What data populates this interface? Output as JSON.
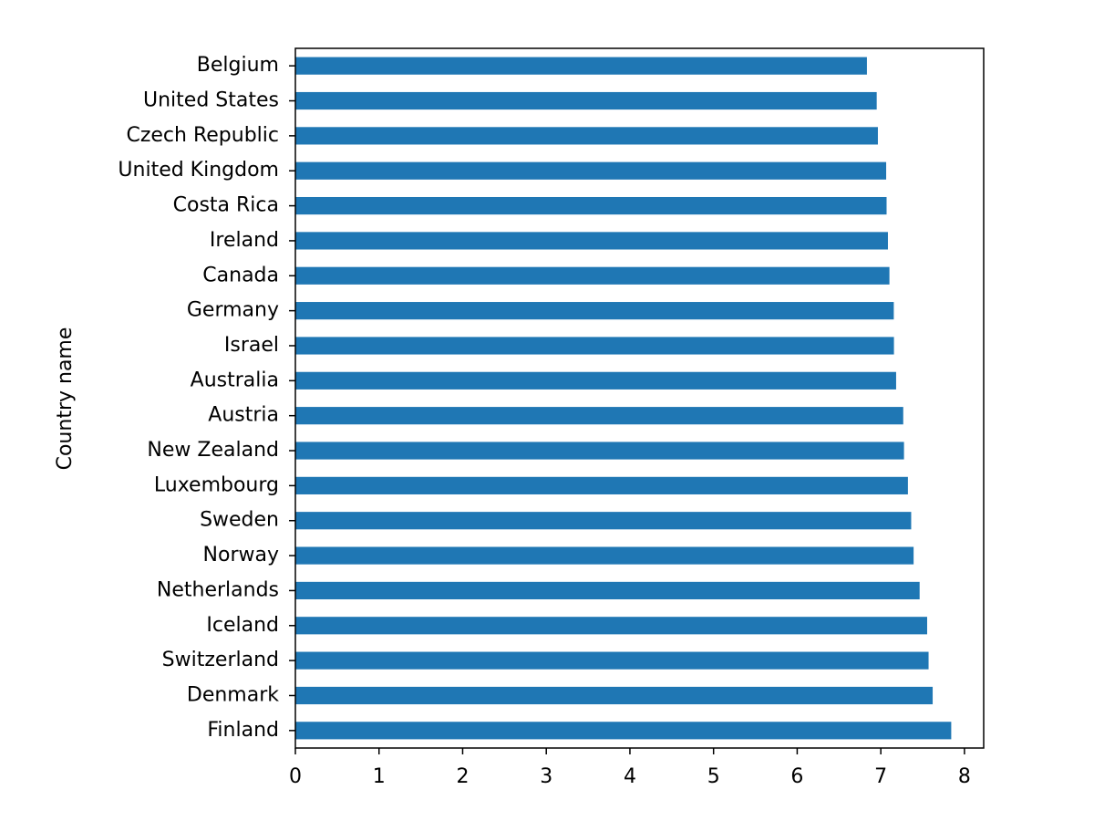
{
  "chart_data": {
    "type": "barh",
    "y_label": "Country name",
    "categories": [
      "Finland",
      "Denmark",
      "Switzerland",
      "Iceland",
      "Netherlands",
      "Norway",
      "Sweden",
      "Luxembourg",
      "New Zealand",
      "Austria",
      "Australia",
      "Israel",
      "Germany",
      "Canada",
      "Ireland",
      "Costa Rica",
      "United Kingdom",
      "Czech Republic",
      "United States",
      "Belgium"
    ],
    "values": [
      7.842,
      7.62,
      7.571,
      7.554,
      7.464,
      7.392,
      7.363,
      7.324,
      7.277,
      7.268,
      7.183,
      7.157,
      7.155,
      7.103,
      7.085,
      7.069,
      7.064,
      6.965,
      6.951,
      6.834
    ],
    "color": "#1f77b4",
    "xlim": [
      0,
      8.23
    ],
    "xticks": [
      0,
      1,
      2,
      3,
      4,
      5,
      6,
      7,
      8
    ]
  }
}
